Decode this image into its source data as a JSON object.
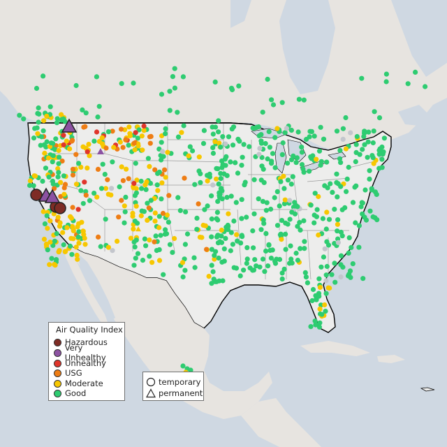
{
  "legend": {
    "title": "Air Quality Index",
    "items": [
      {
        "label": "Hazardous",
        "color": "#7e2c25"
      },
      {
        "label": "Very Unhealthy",
        "color": "#8c52a2"
      },
      {
        "label": "Unhealthy",
        "color": "#e0352b"
      },
      {
        "label": "USG",
        "color": "#ee7d14"
      },
      {
        "label": "Moderate",
        "color": "#f7c700"
      },
      {
        "label": "Good",
        "color": "#2ecc71"
      }
    ]
  },
  "shape_legend": {
    "temporary_label": "temporary",
    "permanent_label": "permanent"
  },
  "colors": {
    "ocean": "#cfd8e2",
    "land": "#e9e8e6",
    "us_land": "#ededec",
    "border": "#000000",
    "state_lines": "#9c9c9c",
    "no_data": "#c3c6cc"
  }
}
